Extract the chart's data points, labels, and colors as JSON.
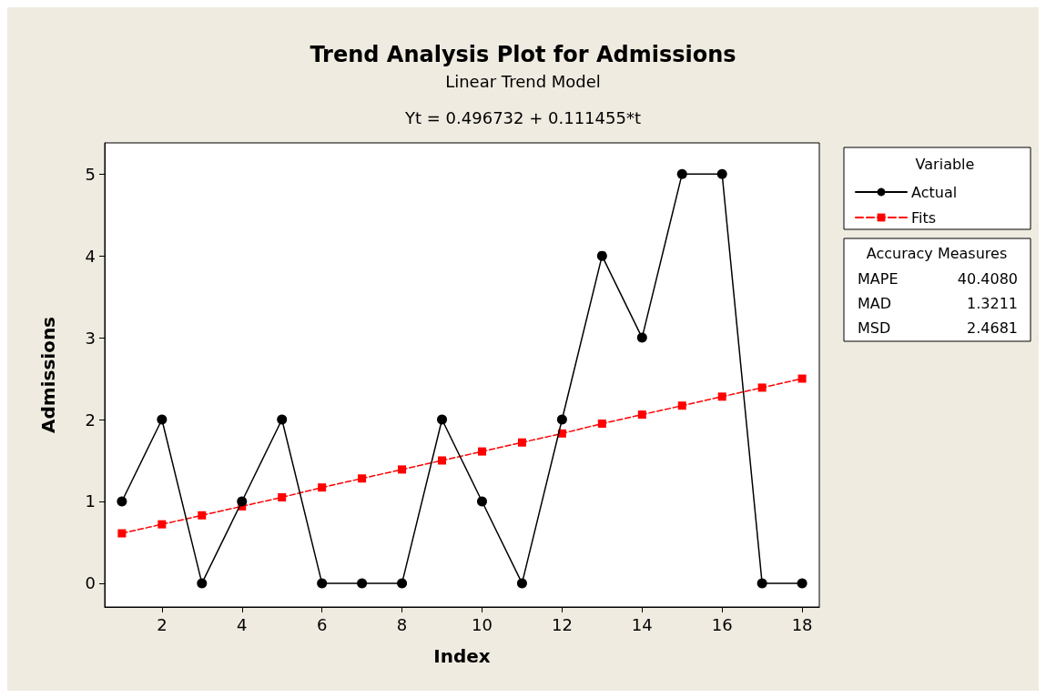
{
  "chart_data": {
    "type": "line",
    "title": "Trend Analysis Plot for Admissions",
    "subtitle": "Linear Trend Model",
    "xlabel": "Index",
    "ylabel": "Admissions",
    "legend_title": "Variable",
    "x": [
      1,
      2,
      3,
      4,
      5,
      6,
      7,
      8,
      9,
      10,
      11,
      12,
      13,
      14,
      15,
      16,
      17,
      18
    ],
    "series": [
      {
        "name": "Actual",
        "color": "#000000",
        "marker": "circle",
        "line_style": "solid",
        "values": [
          1,
          2,
          0,
          1,
          2,
          0,
          0,
          0,
          2,
          1,
          0,
          2,
          4,
          3,
          5,
          5,
          0,
          0
        ]
      },
      {
        "name": "Fits",
        "color": "#ff0000",
        "marker": "square",
        "line_style": "dashed",
        "values": [
          0.61,
          0.72,
          0.83,
          0.94,
          1.05,
          1.17,
          1.28,
          1.39,
          1.5,
          1.61,
          1.72,
          1.83,
          1.95,
          2.06,
          2.17,
          2.28,
          2.39,
          2.5
        ]
      }
    ],
    "xlim": [
      0.57,
      18.43
    ],
    "xticks": [
      2,
      4,
      6,
      8,
      10,
      12,
      14,
      16,
      18
    ],
    "ylim": [
      -0.29,
      5.38
    ],
    "yticks": [
      0,
      1,
      2,
      3,
      4,
      5
    ],
    "grid": false,
    "legend": "right",
    "annotations": [
      "Yt = 0.496732 + 0.111455*t",
      "Accuracy Measures",
      "MAPE",
      "40.4080",
      "MAD",
      "1.3211",
      "MSD",
      "2.4681"
    ]
  }
}
